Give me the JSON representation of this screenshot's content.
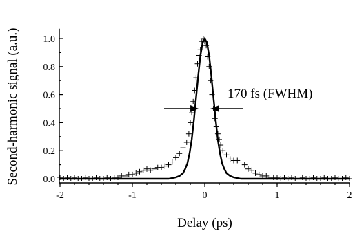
{
  "chart_data": {
    "type": "scatter",
    "xlabel": "Delay (ps)",
    "ylabel": "Second-harmonic signal (a.u.)",
    "xlim": [
      -2.05,
      2.05
    ],
    "ylim": [
      -0.03,
      1.05
    ],
    "x_ticks": [
      -2,
      -1,
      0,
      1,
      2
    ],
    "x_tick_labels": [
      "-2",
      "-1",
      "0",
      "1",
      "2"
    ],
    "y_ticks": [
      0.0,
      0.2,
      0.4,
      0.6,
      0.8,
      1.0
    ],
    "y_tick_labels": [
      "0.0",
      "0.2",
      "0.4",
      "0.6",
      "0.8",
      "1.0"
    ],
    "grid": false,
    "annotation": {
      "text": "170 fs (FWHM)",
      "y": 0.5,
      "x_left": -0.085,
      "x_right": 0.085
    },
    "series": [
      {
        "style": "crosses",
        "x": [
          -2.0,
          -1.95,
          -1.9,
          -1.85,
          -1.8,
          -1.75,
          -1.7,
          -1.65,
          -1.6,
          -1.55,
          -1.5,
          -1.45,
          -1.4,
          -1.35,
          -1.3,
          -1.25,
          -1.2,
          -1.15,
          -1.1,
          -1.05,
          -1.0,
          -0.95,
          -0.9,
          -0.85,
          -0.8,
          -0.75,
          -0.7,
          -0.65,
          -0.6,
          -0.55,
          -0.5,
          -0.45,
          -0.4,
          -0.35,
          -0.3,
          -0.25,
          -0.22,
          -0.2,
          -0.18,
          -0.16,
          -0.14,
          -0.12,
          -0.1,
          -0.08,
          -0.06,
          -0.04,
          -0.02,
          0.0,
          0.02,
          0.04,
          0.06,
          0.08,
          0.1,
          0.12,
          0.14,
          0.16,
          0.18,
          0.2,
          0.22,
          0.25,
          0.3,
          0.35,
          0.4,
          0.45,
          0.5,
          0.55,
          0.6,
          0.65,
          0.7,
          0.75,
          0.8,
          0.85,
          0.9,
          0.95,
          1.0,
          1.05,
          1.1,
          1.15,
          1.2,
          1.25,
          1.3,
          1.35,
          1.4,
          1.45,
          1.5,
          1.55,
          1.6,
          1.65,
          1.7,
          1.75,
          1.8,
          1.85,
          1.9,
          1.95,
          2.0
        ],
        "y": [
          0.01,
          0.0,
          0.01,
          0.0,
          0.01,
          0.0,
          0.0,
          0.01,
          0.0,
          0.0,
          0.01,
          0.0,
          0.0,
          0.01,
          0.0,
          0.01,
          0.01,
          0.02,
          0.02,
          0.03,
          0.03,
          0.04,
          0.05,
          0.06,
          0.07,
          0.06,
          0.07,
          0.08,
          0.08,
          0.09,
          0.1,
          0.12,
          0.15,
          0.18,
          0.22,
          0.26,
          0.32,
          0.4,
          0.47,
          0.55,
          0.63,
          0.72,
          0.82,
          0.88,
          0.92,
          0.98,
          1.0,
          0.98,
          0.95,
          0.87,
          0.8,
          0.7,
          0.6,
          0.5,
          0.43,
          0.37,
          0.32,
          0.28,
          0.24,
          0.2,
          0.17,
          0.14,
          0.13,
          0.13,
          0.12,
          0.1,
          0.07,
          0.06,
          0.04,
          0.03,
          0.02,
          0.02,
          0.01,
          0.01,
          0.01,
          0.0,
          0.01,
          0.0,
          0.01,
          0.0,
          0.0,
          0.01,
          0.0,
          0.0,
          0.01,
          0.0,
          0.0,
          0.01,
          0.0,
          0.0,
          0.01,
          0.0,
          0.0,
          0.01,
          0.0
        ]
      },
      {
        "style": "solid-line",
        "x": [
          -2.0,
          -1.5,
          -1.0,
          -0.7,
          -0.5,
          -0.4,
          -0.35,
          -0.3,
          -0.27,
          -0.24,
          -0.21,
          -0.18,
          -0.15,
          -0.12,
          -0.09,
          -0.06,
          -0.03,
          0.0,
          0.03,
          0.06,
          0.09,
          0.12,
          0.15,
          0.18,
          0.21,
          0.24,
          0.27,
          0.3,
          0.35,
          0.4,
          0.5,
          0.7,
          1.0,
          1.5,
          2.0
        ],
        "y": [
          0.0,
          0.0,
          0.0,
          0.0,
          0.0,
          0.01,
          0.02,
          0.04,
          0.07,
          0.11,
          0.18,
          0.28,
          0.42,
          0.58,
          0.74,
          0.88,
          0.97,
          1.0,
          0.97,
          0.88,
          0.74,
          0.58,
          0.42,
          0.28,
          0.18,
          0.11,
          0.07,
          0.04,
          0.02,
          0.01,
          0.0,
          0.0,
          0.0,
          0.0,
          0.0
        ]
      }
    ]
  }
}
